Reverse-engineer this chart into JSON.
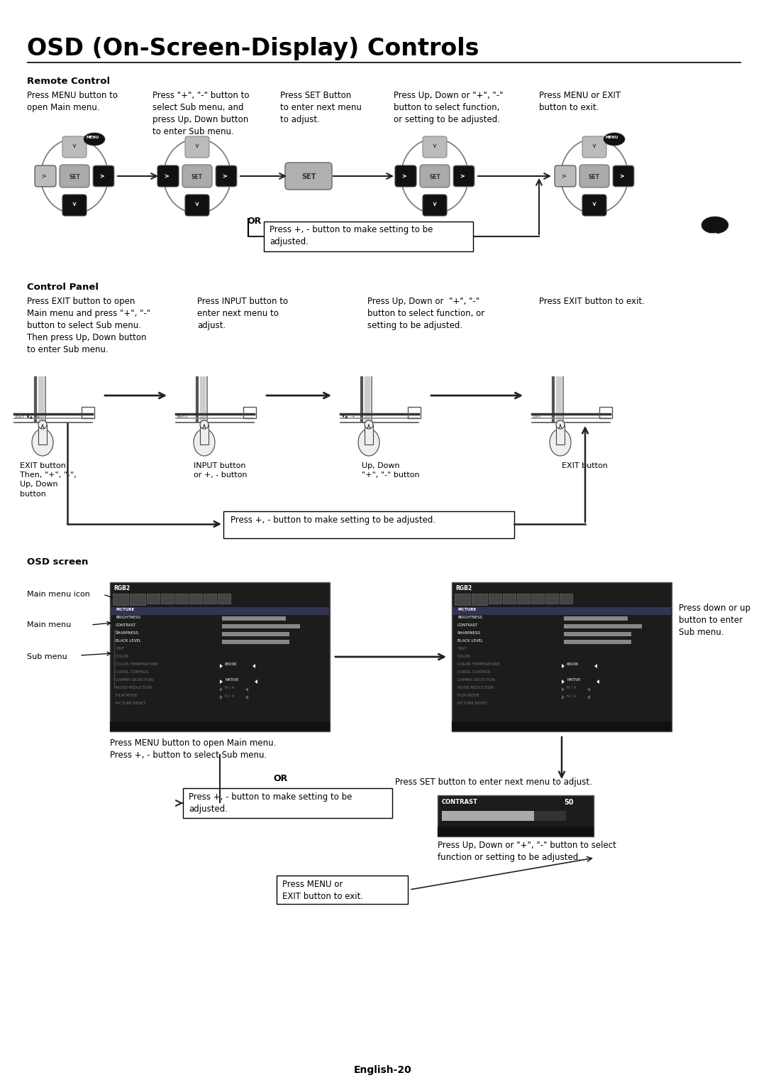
{
  "title": "OSD (On-Screen-Display) Controls",
  "bg_color": "#ffffff",
  "page_label": "English-20",
  "remote_control_header": "Remote Control",
  "rc_col1_text": "Press MENU button to\nopen Main menu.",
  "rc_col2_text": "Press \"+\", \"-\" button to\nselect Sub menu, and\npress Up, Down button\nto enter Sub menu.",
  "rc_col3_text": "Press SET Button\nto enter next menu\nto adjust.",
  "rc_col4_text": "Press Up, Down or \"+\", \"-\"\nbutton to select function,\nor setting to be adjusted.",
  "rc_col5_text": "Press MENU or EXIT\nbutton to exit.",
  "rc_or_text": "OR",
  "rc_box_text": "Press +, - button to make setting to be\nadjusted.",
  "control_panel_header": "Control Panel",
  "cp_col1_text": "Press EXIT button to open\nMain menu and press \"+\", \"-\"\nbutton to select Sub menu.\nThen press Up, Down button\nto enter Sub menu.",
  "cp_col2_text": "Press INPUT button to\nenter next menu to\nadjust.",
  "cp_col3_text": "Press Up, Down or  \"+\", \"-\"\nbutton to select function, or\nsetting to be adjusted.",
  "cp_col4_text": "Press EXIT button to exit.",
  "cp_label1": "EXIT button\nThen, \"+\", \"-\",\nUp, Down\nbutton",
  "cp_label2": "INPUT button\nor +, - button",
  "cp_label3": "Up, Down\n\"+\", \"-\" button",
  "cp_label4": "EXIT button",
  "cp_box_text": "Press +, - button to make setting to be adjusted.",
  "osd_header": "OSD screen",
  "osd_main_menu_icon": "Main menu icon",
  "osd_main_menu": "Main menu",
  "osd_sub_menu": "Sub menu",
  "osd_press1": "Press down or up\nbutton to enter\nSub menu.",
  "osd_press2": "Press MENU button to open Main menu.\nPress +, - button to select Sub menu.",
  "osd_or": "OR",
  "osd_box1": "Press +, - button to make setting to be\nadjusted.",
  "osd_press3": "Press SET button to enter next menu to adjust.",
  "osd_press4": "Press Up, Down or \"+\", \"-\" button to select\nfunction or setting to be adjusted.",
  "osd_box2": "Press MENU or\nEXIT button to exit."
}
